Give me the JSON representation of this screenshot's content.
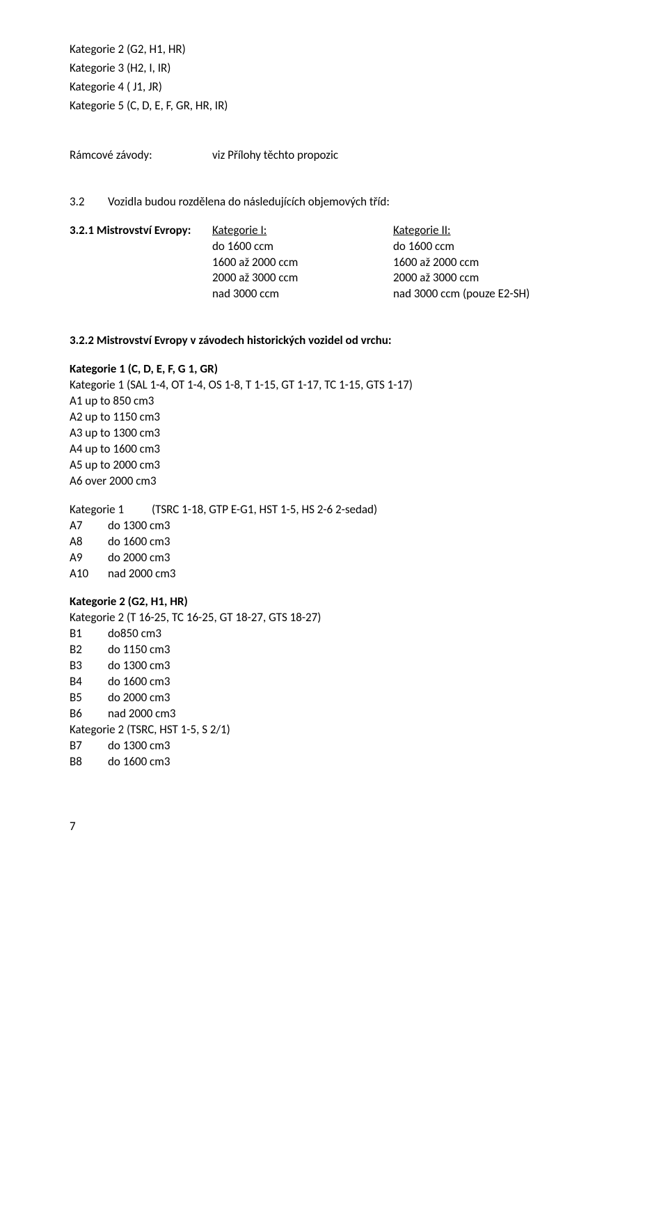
{
  "top_categories": [
    "Kategorie 2 (G2, H1, HR)",
    "Kategorie 3 (H2, I, IR)",
    "Kategorie 4 ( J1, JR)",
    "Kategorie 5 (C, D, E, F, GR, HR, IR)"
  ],
  "ramcove": {
    "label": "Rámcové závody:",
    "value": "viz Přílohy těchto propozic"
  },
  "s32": {
    "num": "3.2",
    "text": "Vozidla budou rozdělena do následujících objemových tříd:"
  },
  "s321": {
    "label": "3.2.1 Mistrovství Evropy:",
    "col1_head": "Kategorie I:",
    "col2_head": "Kategorie II:",
    "rows": [
      {
        "a": "do 1600 ccm",
        "b": "do 1600 ccm"
      },
      {
        "a": "1600 až 2000 ccm",
        "b": "1600 až  2000 ccm"
      },
      {
        "a": "2000 až  3000 ccm",
        "b": "2000 až 3000 ccm"
      },
      {
        "a": "nad 3000 ccm",
        "b": "nad 3000 ccm (pouze E2-SH)"
      }
    ]
  },
  "s322": {
    "heading": "3.2.2 Mistrovství Evropy v závodech historických vozidel od vrchu:",
    "kat1a_title": "Kategorie 1 (C, D, E, F, G 1, GR)",
    "kat1a_sub": "Kategorie 1  (SAL 1-4, OT 1-4, OS 1-8, T 1-15, GT 1-17, TC 1-15, GTS 1-17)",
    "kat1a_items": [
      "A1 up to  850 cm3",
      "A2 up to 1150 cm3",
      "A3 up to 1300 cm3",
      "A4 up to 1600 cm3",
      "A5 up to 2000 cm3",
      "A6 over 2000 cm3"
    ],
    "kat1b_title_label": "Kategorie 1",
    "kat1b_title_rest": "(TSRC 1-18, GTP E-G1, HST 1-5, HS 2-6 2-sedad)",
    "kat1b_items": [
      {
        "code": "A7",
        "val": "do 1300 cm3"
      },
      {
        "code": "A8",
        "val": "do 1600 cm3"
      },
      {
        "code": "A9",
        "val": "do 2000 cm3"
      },
      {
        "code": "A10",
        "val": "nad 2000 cm3"
      }
    ],
    "kat2a_title": "Kategorie 2 (G2, H1, HR)",
    "kat2a_sub": "Kategorie 2 (T 16-25, TC 16-25, GT 18-27, GTS 18-27)",
    "kat2a_items": [
      {
        "code": "B1",
        "val": "do850 cm3"
      },
      {
        "code": "B2",
        "val": "do 1150 cm3"
      },
      {
        "code": "B3",
        "val": "do 1300 cm3"
      },
      {
        "code": "B4",
        "val": "do 1600 cm3"
      },
      {
        "code": "B5",
        "val": "do 2000 cm3"
      },
      {
        "code": "B6",
        "val": "nad 2000 cm3"
      }
    ],
    "kat2b_sub": "Kategorie 2 (TSRC, HST 1-5, S 2/1)",
    "kat2b_items": [
      {
        "code": "B7",
        "val": "do 1300 cm3"
      },
      {
        "code": "B8",
        "val": "do 1600 cm3"
      }
    ]
  },
  "page_number": "7"
}
